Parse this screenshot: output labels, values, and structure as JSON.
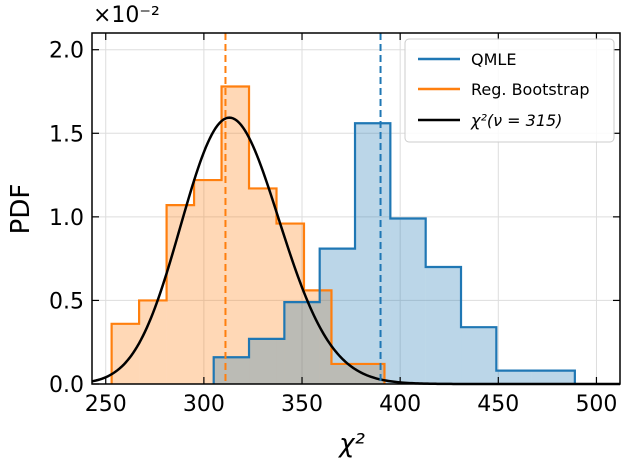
{
  "chart_data": {
    "type": "histogram",
    "multiplier_label": "×10⁻²",
    "xlabel": "χ²",
    "ylabel": "PDF",
    "xlim": [
      243,
      512
    ],
    "ylim": [
      0,
      2.1
    ],
    "xticks": [
      250,
      300,
      350,
      400,
      450,
      500
    ],
    "xtick_labels": [
      "250",
      "300",
      "350",
      "400",
      "450",
      "500"
    ],
    "yticks": [
      0,
      0.5,
      1.0,
      1.5,
      2.0
    ],
    "ytick_labels": [
      "0.0",
      "0.5",
      "1.0",
      "1.5",
      "2.0"
    ],
    "grid": true,
    "legend_position": "top-right",
    "colors": {
      "qmle": "#1f77b4",
      "bootstrap": "#ff7f0e",
      "chi2": "#000000"
    },
    "series": [
      {
        "name": "QMLE",
        "kind": "step-hist",
        "edges": [
          305,
          323,
          341,
          359,
          377,
          395,
          413,
          431,
          449,
          467,
          489
        ],
        "values": [
          0.16,
          0.27,
          0.49,
          0.81,
          1.56,
          0.99,
          0.7,
          0.34,
          0.08,
          0.08
        ],
        "mean_line": 390
      },
      {
        "name": "Reg. Bootstrap",
        "kind": "step-hist",
        "edges": [
          253,
          267,
          281,
          295,
          309,
          323,
          337,
          351,
          365,
          379,
          392
        ],
        "values": [
          0.36,
          0.5,
          1.07,
          1.22,
          1.78,
          1.17,
          0.96,
          0.56,
          0.12,
          0.12
        ],
        "mean_line": 311
      },
      {
        "name": "χ²(ν = 315)",
        "kind": "curve",
        "nu": 315
      }
    ]
  }
}
